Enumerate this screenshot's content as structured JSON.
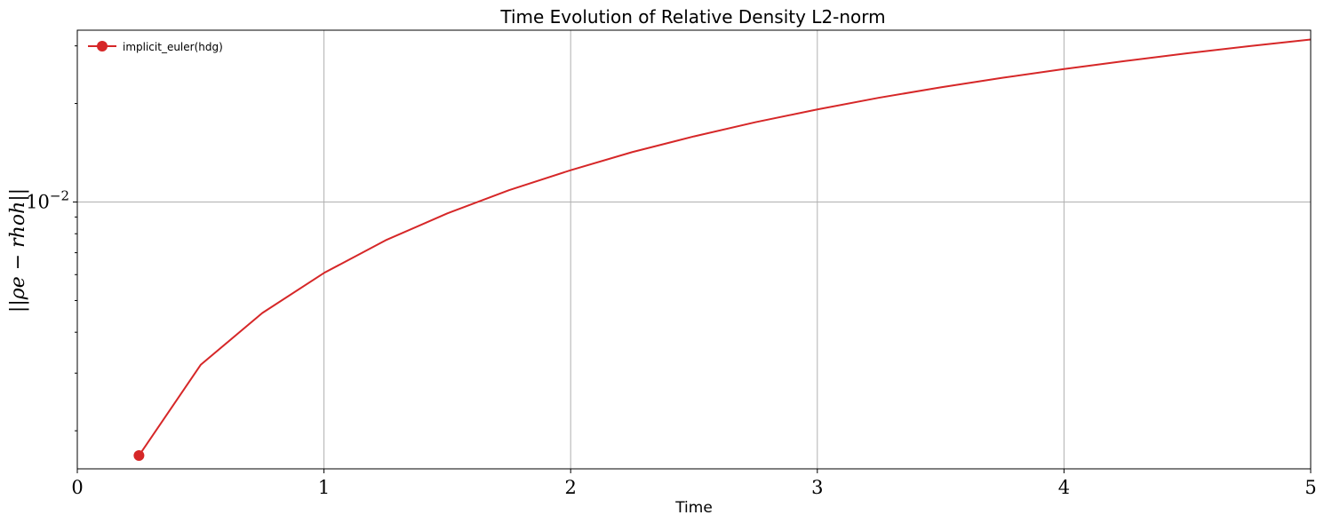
{
  "chart_data": {
    "type": "line",
    "title": "Time Evolution of Relative Density L2-norm",
    "xlabel": "Time",
    "ylabel": "||ρe − rhoh||",
    "xlim": [
      0,
      5
    ],
    "ylim": [
      0.00153,
      0.0335
    ],
    "yscale": "log",
    "grid": true,
    "legend_position": "top-left",
    "x_ticks": [
      {
        "value": 0,
        "label": "0"
      },
      {
        "value": 1,
        "label": "1"
      },
      {
        "value": 2,
        "label": "2"
      },
      {
        "value": 3,
        "label": "3"
      },
      {
        "value": 4,
        "label": "4"
      },
      {
        "value": 5,
        "label": "5"
      }
    ],
    "y_major_ticks": [
      {
        "value": 0.01,
        "label": "10−2"
      }
    ],
    "y_minor_ticks": [
      0.002,
      0.003,
      0.004,
      0.005,
      0.006,
      0.007,
      0.008,
      0.009,
      0.02,
      0.03
    ],
    "series": [
      {
        "name": "implicit_euler(hdg)",
        "color": "#d62728",
        "x": [
          0.25,
          0.5,
          0.75,
          1.0,
          1.25,
          1.5,
          1.75,
          2.0,
          2.25,
          2.5,
          2.75,
          3.0,
          3.25,
          3.5,
          3.75,
          4.0,
          4.25,
          4.5,
          4.75,
          5.0
        ],
        "y": [
          0.00168,
          0.00318,
          0.00458,
          0.00607,
          0.00764,
          0.00923,
          0.01087,
          0.01251,
          0.01421,
          0.01587,
          0.01754,
          0.01918,
          0.02083,
          0.0224,
          0.02396,
          0.02548,
          0.02699,
          0.02847,
          0.02994,
          0.03138
        ]
      }
    ]
  }
}
